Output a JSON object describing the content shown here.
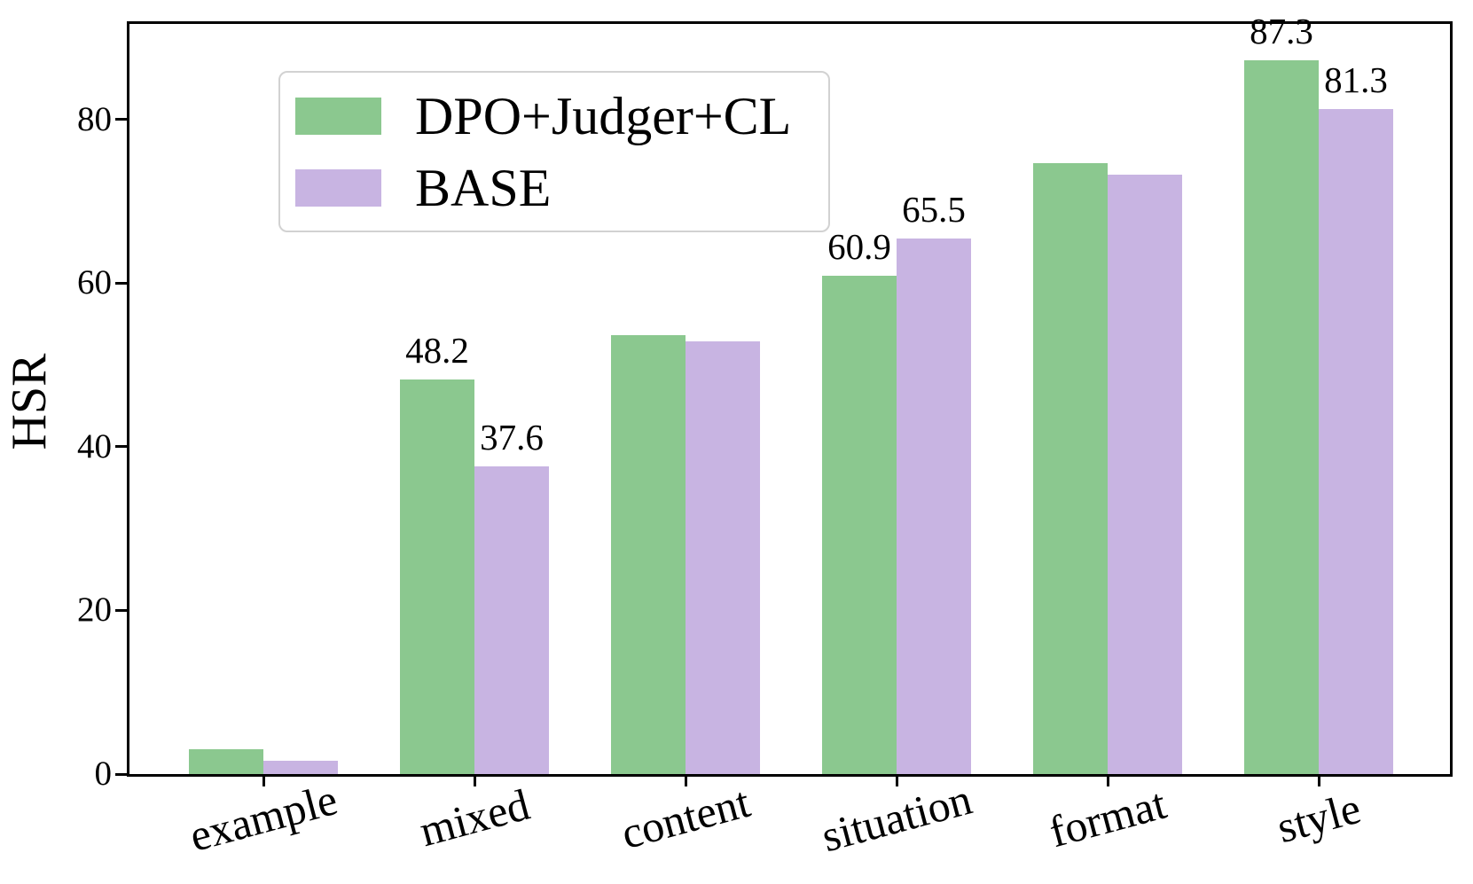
{
  "chart_data": {
    "type": "bar",
    "title": "",
    "ylabel": "HSR",
    "xlabel": "",
    "categories": [
      "example",
      "mixed",
      "content",
      "situation",
      "format",
      "style"
    ],
    "series": [
      {
        "name": "DPO+Judger+CL",
        "color": "#8bc88f",
        "values": [
          3.0,
          48.2,
          53.7,
          60.9,
          74.7,
          87.3
        ],
        "value_labels": [
          "",
          "48.2",
          "",
          "60.9",
          "",
          "87.3"
        ]
      },
      {
        "name": "BASE",
        "color": "#c8b4e2",
        "values": [
          1.6,
          37.6,
          52.9,
          65.5,
          73.3,
          81.3
        ],
        "value_labels": [
          "",
          "37.6",
          "",
          "65.5",
          "",
          "81.3"
        ]
      }
    ],
    "yticks": [
      0,
      20,
      40,
      60,
      80
    ],
    "ylim": [
      0,
      91.7
    ],
    "x_tick_rotation_deg": 15,
    "legend_position": "upper-left",
    "grid": false,
    "axis_color": "#000000",
    "text_color": "#000000",
    "background_color": "#ffffff"
  }
}
